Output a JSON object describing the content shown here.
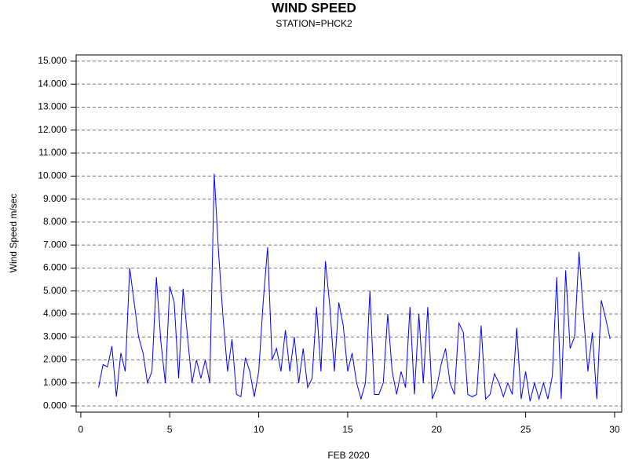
{
  "chart_data": {
    "type": "line",
    "title": "WIND SPEED",
    "subtitle": "STATION=PHCK2",
    "x_label": "FEB 2020",
    "y_label": "Wind Speed m/sec",
    "color": "#0000ff",
    "grid": true,
    "xlim": [
      -0.26,
      30.4
    ],
    "ylim": [
      -0.27,
      15.27
    ],
    "xticks": [
      0,
      5,
      10,
      15,
      20,
      25,
      30
    ],
    "yticks": [
      {
        "value": 0,
        "label": "0.000"
      },
      {
        "value": 1,
        "label": "1.000"
      },
      {
        "value": 2,
        "label": "2.000"
      },
      {
        "value": 3,
        "label": "3.000"
      },
      {
        "value": 4,
        "label": "4.000"
      },
      {
        "value": 5,
        "label": "5.000"
      },
      {
        "value": 6,
        "label": "6.000"
      },
      {
        "value": 7,
        "label": "7.000"
      },
      {
        "value": 8,
        "label": "8.000"
      },
      {
        "value": 9,
        "label": "9.000"
      },
      {
        "value": 10,
        "label": "10.000"
      },
      {
        "value": 11,
        "label": "11.000"
      },
      {
        "value": 12,
        "label": "12.000"
      },
      {
        "value": 13,
        "label": "13.000"
      },
      {
        "value": 14,
        "label": "14.000"
      },
      {
        "value": 15,
        "label": "15.000"
      }
    ],
    "x": [
      1.0,
      1.25,
      1.5,
      1.75,
      2.0,
      2.25,
      2.5,
      2.75,
      3.0,
      3.25,
      3.5,
      3.75,
      4.0,
      4.25,
      4.5,
      4.75,
      5.0,
      5.25,
      5.5,
      5.75,
      6.0,
      6.25,
      6.5,
      6.75,
      7.0,
      7.25,
      7.5,
      7.75,
      8.0,
      8.25,
      8.5,
      8.75,
      9.0,
      9.25,
      9.5,
      9.75,
      10.0,
      10.25,
      10.5,
      10.75,
      11.0,
      11.25,
      11.5,
      11.75,
      12.0,
      12.25,
      12.5,
      12.75,
      13.0,
      13.25,
      13.5,
      13.75,
      14.0,
      14.25,
      14.5,
      14.75,
      15.0,
      15.25,
      15.5,
      15.75,
      16.0,
      16.25,
      16.5,
      16.75,
      17.0,
      17.25,
      17.5,
      17.75,
      18.0,
      18.25,
      18.5,
      18.75,
      19.0,
      19.25,
      19.5,
      19.75,
      20.0,
      20.25,
      20.5,
      20.75,
      21.0,
      21.25,
      21.5,
      21.75,
      22.0,
      22.25,
      22.5,
      22.75,
      23.0,
      23.25,
      23.5,
      23.75,
      24.0,
      24.25,
      24.5,
      24.75,
      25.0,
      25.25,
      25.5,
      25.75,
      26.0,
      26.25,
      26.5,
      26.75,
      27.0,
      27.25,
      27.5,
      27.75,
      28.0,
      28.25,
      28.5,
      28.75,
      29.0,
      29.25,
      29.5,
      29.75
    ],
    "values": [
      0.8,
      1.8,
      1.7,
      2.6,
      0.4,
      2.3,
      1.5,
      6.0,
      4.5,
      3.0,
      2.3,
      1.0,
      1.5,
      5.6,
      2.8,
      1.0,
      5.2,
      4.5,
      1.2,
      5.1,
      3.0,
      1.0,
      2.0,
      1.2,
      2.0,
      1.0,
      10.1,
      6.6,
      3.8,
      1.5,
      2.9,
      0.5,
      0.4,
      2.1,
      1.5,
      0.4,
      1.5,
      4.5,
      6.9,
      2.0,
      2.5,
      1.5,
      3.3,
      1.5,
      3.0,
      1.0,
      2.5,
      0.8,
      1.2,
      4.3,
      1.5,
      6.3,
      4.3,
      1.5,
      4.5,
      3.5,
      1.5,
      2.3,
      1.0,
      0.3,
      1.0,
      5.0,
      0.5,
      0.5,
      1.0,
      4.0,
      1.5,
      0.5,
      1.5,
      0.8,
      4.3,
      0.5,
      4.0,
      1.0,
      4.3,
      0.3,
      0.8,
      1.8,
      2.5,
      1.0,
      0.5,
      3.6,
      3.2,
      0.5,
      0.4,
      0.5,
      3.5,
      0.3,
      0.5,
      1.4,
      1.0,
      0.4,
      1.0,
      0.5,
      3.4,
      0.3,
      1.5,
      0.2,
      1.0,
      0.3,
      1.0,
      0.3,
      1.3,
      5.6,
      0.3,
      5.9,
      2.5,
      3.0,
      6.7,
      4.0,
      1.5,
      3.2,
      0.3,
      4.6,
      3.8,
      2.9
    ]
  }
}
